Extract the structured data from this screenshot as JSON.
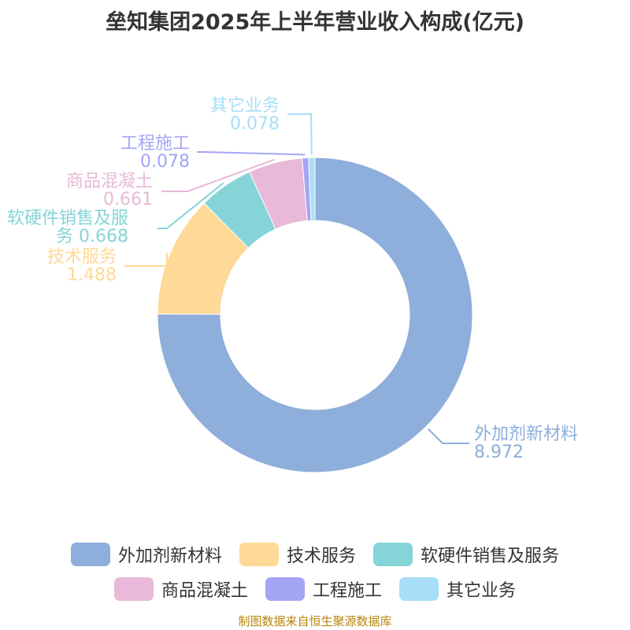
{
  "chart_data": {
    "type": "pie",
    "title": "垒知集团2025年上半年营业收入构成(亿元)",
    "unit": "亿元",
    "donut": true,
    "categories": [
      "外加剂新材料",
      "技术服务",
      "软硬件销售及服务",
      "商品混凝土",
      "工程施工",
      "其它业务"
    ],
    "values": [
      8.972,
      1.488,
      0.668,
      0.661,
      0.078,
      0.078
    ],
    "value_labels": [
      "8.972",
      "1.488",
      "0.668",
      "0.661",
      "0.078",
      "0.078"
    ],
    "colors": [
      "#8eaedb",
      "#fed997",
      "#85d4d8",
      "#e8b9d8",
      "#a5a5f5",
      "#a8def8"
    ],
    "legend_position": "bottom"
  },
  "source_note": "制图数据来自恒生聚源数据库"
}
